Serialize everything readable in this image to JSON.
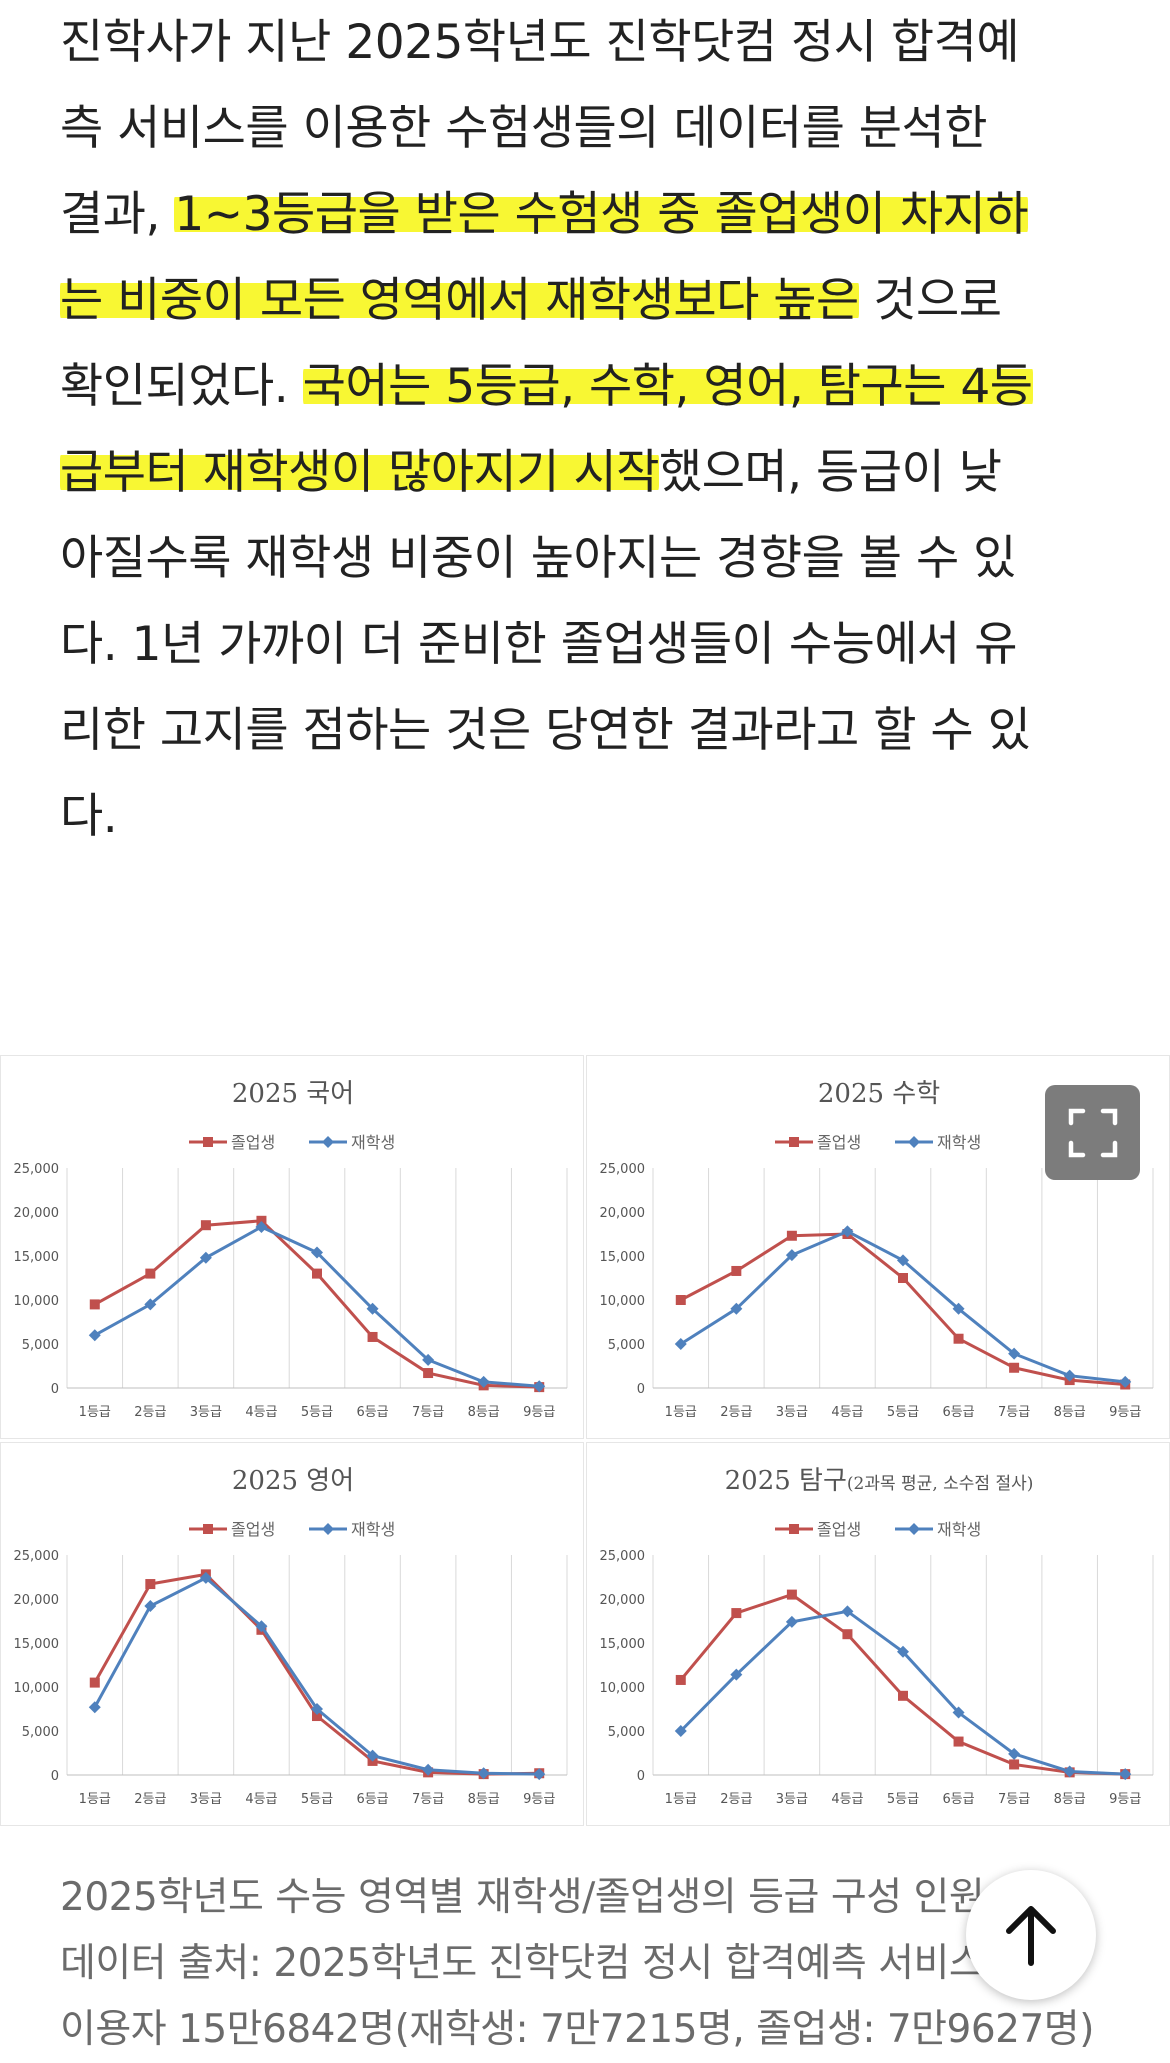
{
  "article": {
    "lines": [
      [
        {
          "t": "진학사가 지난 2025학년도 진학닷컴 정시 합격예",
          "hl": false
        }
      ],
      [
        {
          "t": "측 서비스를 이용한 수험생들의 데이터를 분석한",
          "hl": false
        }
      ],
      [
        {
          "t": "결과, ",
          "hl": false
        },
        {
          "t": "1~3등급을 받은 수험생 중 졸업생이 차지하",
          "hl": true
        }
      ],
      [
        {
          "t": "는 비중이 모든 영역에서 재학생보다 높은",
          "hl": true
        },
        {
          "t": " 것으로",
          "hl": false
        }
      ],
      [
        {
          "t": "확인되었다. ",
          "hl": false
        },
        {
          "t": "국어는 5등급, 수학, 영어, 탐구는 4등",
          "hl": true
        }
      ],
      [
        {
          "t": "급부터 재학생이 많아지기 시작",
          "hl": true
        },
        {
          "t": "했으며, 등급이 낮",
          "hl": false
        }
      ],
      [
        {
          "t": "아질수록 재학생 비중이 높아지는 경향을 볼 수 있",
          "hl": false
        }
      ],
      [
        {
          "t": "다. 1년 가까이 더 준비한 졸업생들이 수능에서 유",
          "hl": false
        }
      ],
      [
        {
          "t": "리한 고지를 점하는 것은 당연한 결과라고 할 수 있",
          "hl": false
        }
      ],
      [
        {
          "t": "다.",
          "hl": false
        }
      ]
    ]
  },
  "colors": {
    "graduate": "#c0504d",
    "student": "#4f81bd",
    "highlight": "#f8f733"
  },
  "chart_data": [
    {
      "type": "line",
      "title": "2025 국어",
      "categories": [
        "1등급",
        "2등급",
        "3등급",
        "4등급",
        "5등급",
        "6등급",
        "7등급",
        "8등급",
        "9등급"
      ],
      "series": [
        {
          "name": "졸업생",
          "values": [
            9500,
            13000,
            18500,
            19000,
            13000,
            5800,
            1700,
            300,
            100
          ]
        },
        {
          "name": "재학생",
          "values": [
            6000,
            9500,
            14800,
            18300,
            15400,
            9000,
            3200,
            700,
            200
          ]
        }
      ],
      "yticks": [
        "25,000",
        "20,000",
        "15,000",
        "10,000",
        "5,000",
        "0"
      ],
      "ylim": [
        0,
        25000
      ],
      "legend": "top"
    },
    {
      "type": "line",
      "title": "2025 수학",
      "categories": [
        "1등급",
        "2등급",
        "3등급",
        "4등급",
        "5등급",
        "6등급",
        "7등급",
        "8등급",
        "9등급"
      ],
      "series": [
        {
          "name": "졸업생",
          "values": [
            10000,
            13300,
            17300,
            17500,
            12500,
            5600,
            2300,
            900,
            400
          ]
        },
        {
          "name": "재학생",
          "values": [
            5000,
            9000,
            15100,
            17800,
            14500,
            9000,
            3900,
            1400,
            700
          ]
        }
      ],
      "yticks": [
        "25,000",
        "20,000",
        "15,000",
        "10,000",
        "5,000",
        "0"
      ],
      "ylim": [
        0,
        25000
      ],
      "legend": "top"
    },
    {
      "type": "line",
      "title": "2025 영어",
      "categories": [
        "1등급",
        "2등급",
        "3등급",
        "4등급",
        "5등급",
        "6등급",
        "7등급",
        "8등급",
        "9등급"
      ],
      "series": [
        {
          "name": "졸업생",
          "values": [
            10500,
            21700,
            22800,
            16500,
            6700,
            1600,
            300,
            100,
            200
          ]
        },
        {
          "name": "재학생",
          "values": [
            7700,
            19200,
            22400,
            16900,
            7500,
            2200,
            600,
            200,
            100
          ]
        }
      ],
      "yticks": [
        "25,000",
        "20,000",
        "15,000",
        "10,000",
        "5,000",
        "0"
      ],
      "ylim": [
        0,
        25000
      ],
      "legend": "top"
    },
    {
      "type": "line",
      "title": "2025 탐구",
      "subtitle": "(2과목 평균, 소수점 절사)",
      "categories": [
        "1등급",
        "2등급",
        "3등급",
        "4등급",
        "5등급",
        "6등급",
        "7등급",
        "8등급",
        "9등급"
      ],
      "series": [
        {
          "name": "졸업생",
          "values": [
            10800,
            18400,
            20500,
            16000,
            9000,
            3800,
            1200,
            300,
            100
          ]
        },
        {
          "name": "재학생",
          "values": [
            5000,
            11400,
            17400,
            18600,
            14000,
            7100,
            2400,
            400,
            100
          ]
        }
      ],
      "yticks": [
        "25,000",
        "20,000",
        "15,000",
        "10,000",
        "5,000",
        "0"
      ],
      "ylim": [
        0,
        25000
      ],
      "legend": "top"
    }
  ],
  "caption": {
    "line1": "2025학년도 수능 영역별 재학생/졸업생의 등급 구성 인원",
    "line2": "데이터 출처: 2025학년도 진학닷컴 정시 합격예측 서비스",
    "line3": "이용자 15만6842명(재학생: 7만7215명, 졸업생: 7만9627명)"
  },
  "icons": {
    "fullscreen": "fullscreen-icon",
    "top": "arrow-up-icon"
  }
}
